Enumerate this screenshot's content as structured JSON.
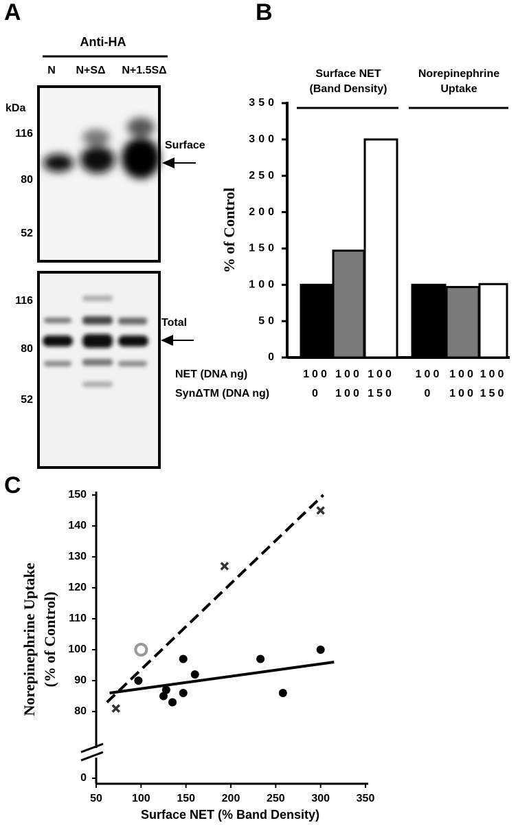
{
  "panel_labels": [
    "A",
    "B",
    "C"
  ],
  "blot": {
    "antibody": "Anti-HA",
    "lanes": [
      "N",
      "N+SΔ",
      "N+1.5SΔ"
    ],
    "unit": "kDa",
    "top": {
      "label": "Surface",
      "markers": [
        "116",
        "80",
        "52"
      ]
    },
    "bottom": {
      "label": "Total",
      "markers": [
        "116",
        "80",
        "52"
      ]
    }
  },
  "chart_data": [
    {
      "type": "bar",
      "ylabel": "% of Control",
      "groups": [
        [
          "Surface NET",
          "(Band Density)"
        ],
        [
          "Norepinephrine",
          "Uptake"
        ]
      ],
      "values": [
        100,
        147,
        300,
        100,
        97,
        101
      ],
      "colors": [
        "#000000",
        "#7a7a7a",
        "#ffffff",
        "#000000",
        "#7a7a7a",
        "#ffffff"
      ],
      "rows": [
        {
          "name": "NET (DNA ng)",
          "values": [
            100,
            100,
            100,
            100,
            100,
            100
          ]
        },
        {
          "name": "SynΔTM (DNA ng)",
          "values": [
            0,
            100,
            150,
            0,
            100,
            150
          ]
        }
      ],
      "ylim": [
        0,
        350
      ],
      "yticks": [
        0,
        50,
        100,
        150,
        200,
        250,
        300,
        350
      ]
    },
    {
      "type": "scatter",
      "xlabel": "Surface NET (% Band Density)",
      "ylabel": [
        "Norepinephrine Uptake",
        "(% of Control)"
      ],
      "series": [
        {
          "marker": "x",
          "color": "#333333",
          "x": [
            72,
            193,
            300
          ],
          "y": [
            81,
            127,
            145
          ]
        },
        {
          "marker": "ring",
          "color": "#999999",
          "x": [
            100
          ],
          "y": [
            100
          ]
        },
        {
          "marker": "dot",
          "color": "#000000",
          "x": [
            97,
            125,
            128,
            135,
            147,
            147,
            160,
            233,
            258,
            300
          ],
          "y": [
            90,
            85,
            87,
            83,
            97,
            86,
            92,
            97,
            86,
            100
          ]
        }
      ],
      "lines": [
        {
          "style": "dashed",
          "x": [
            62,
            303
          ],
          "y": [
            83,
            150
          ]
        },
        {
          "style": "solid",
          "x": [
            65,
            315
          ],
          "y": [
            86,
            96
          ]
        }
      ],
      "xlim": [
        50,
        350
      ],
      "xticks": [
        50,
        100,
        150,
        200,
        250,
        300,
        350
      ],
      "ylim": [
        70,
        150
      ],
      "yticks": [
        0,
        80,
        90,
        100,
        110,
        120,
        130,
        140,
        150
      ],
      "axis_break": true
    }
  ]
}
